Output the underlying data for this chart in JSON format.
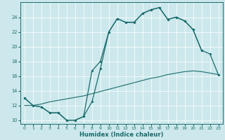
{
  "xlabel": "Humidex (Indice chaleur)",
  "xlim": [
    -0.5,
    23.5
  ],
  "ylim": [
    9.5,
    26.0
  ],
  "xticks": [
    0,
    1,
    2,
    3,
    4,
    5,
    6,
    7,
    8,
    9,
    10,
    11,
    12,
    13,
    14,
    15,
    16,
    17,
    18,
    19,
    20,
    21,
    22,
    23
  ],
  "yticks": [
    10,
    12,
    14,
    16,
    18,
    20,
    22,
    24
  ],
  "bg_color": "#cce8ec",
  "line_color": "#1a6b6b",
  "line1_x": [
    0,
    1,
    2,
    3,
    4,
    5,
    6,
    7,
    8,
    9,
    10,
    11,
    12,
    13,
    14,
    15,
    16,
    17,
    18,
    19,
    20,
    21
  ],
  "line1_y": [
    13,
    12,
    11.8,
    11,
    11,
    10,
    10,
    10.5,
    12.5,
    17,
    22,
    23.8,
    23.3,
    23.3,
    24.5,
    25,
    25.3,
    23.7,
    24,
    23.5,
    22.3,
    19.5
  ],
  "line2_x": [
    0,
    1,
    2,
    3,
    4,
    5,
    6,
    7,
    8,
    9,
    10,
    11,
    12,
    13,
    14,
    15,
    16,
    17,
    18,
    19,
    20,
    21,
    22,
    23
  ],
  "line2_y": [
    13,
    12,
    11.8,
    11,
    11,
    10,
    10,
    10.5,
    16.7,
    18.0,
    22,
    23.8,
    23.3,
    23.3,
    24.5,
    25,
    25.3,
    23.7,
    24,
    23.5,
    22.3,
    19.5,
    19.0,
    16.2
  ],
  "line3_x": [
    0,
    1,
    2,
    3,
    4,
    5,
    6,
    7,
    8,
    9,
    10,
    11,
    12,
    13,
    14,
    15,
    16,
    17,
    18,
    19,
    20,
    21,
    22,
    23
  ],
  "line3_y": [
    12,
    12,
    12.2,
    12.5,
    12.7,
    12.9,
    13.1,
    13.3,
    13.6,
    13.9,
    14.2,
    14.5,
    14.8,
    15.1,
    15.4,
    15.7,
    15.9,
    16.2,
    16.4,
    16.6,
    16.7,
    16.6,
    16.4,
    16.2
  ]
}
